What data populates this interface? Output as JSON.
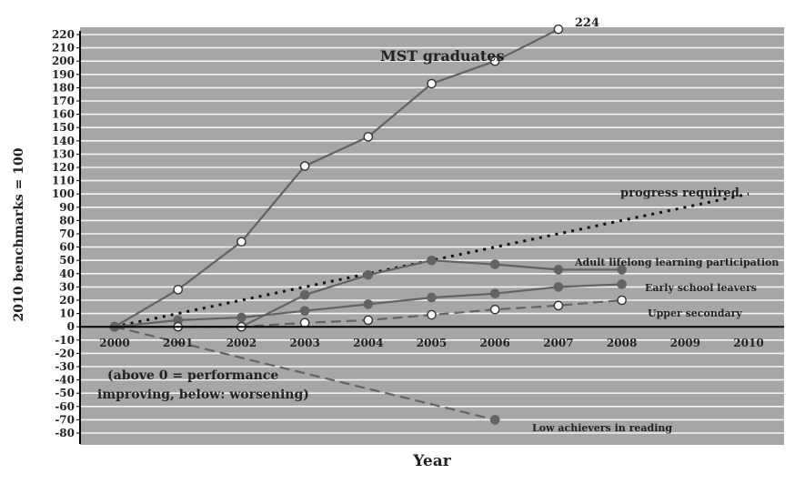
{
  "chart_data": {
    "type": "line",
    "ylabel": "2010 benchmarks = 100",
    "xlabel": "Year",
    "x": [
      2000,
      2001,
      2002,
      2003,
      2004,
      2005,
      2006,
      2007,
      2008,
      2009,
      2010
    ],
    "xlim": [
      2000,
      2010
    ],
    "ylim": [
      -80,
      220
    ],
    "ytick_step": 10,
    "grid": true,
    "colors": {
      "background": "#a6a6a6",
      "grid": "#f2f2f2",
      "series": "#636363",
      "progress": "#111111",
      "axis": "#000000"
    },
    "note_lines": [
      "(above 0 = performance",
      "improving, below: worsening)"
    ],
    "series": [
      {
        "name": "MST graduates",
        "style": "solid",
        "marker": "open",
        "x": [
          2000,
          2001,
          2002,
          2003,
          2004,
          2005,
          2006,
          2007
        ],
        "values": [
          0,
          28,
          64,
          121,
          143,
          183,
          200,
          224
        ],
        "end_value_label": "224"
      },
      {
        "name": "progress required",
        "style": "dotted",
        "marker": "none",
        "x": [
          2000,
          2010
        ],
        "values": [
          0,
          100
        ]
      },
      {
        "name": "Adult lifelong learning participation",
        "style": "solid",
        "marker": "filled",
        "x": [
          2000,
          2001,
          2002,
          2003,
          2004,
          2005,
          2006,
          2007,
          2008
        ],
        "values": [
          0,
          0,
          0,
          24,
          39,
          50,
          47,
          43,
          43
        ]
      },
      {
        "name": "Early school leavers",
        "style": "solid",
        "marker": "filled",
        "x": [
          2000,
          2001,
          2002,
          2003,
          2004,
          2005,
          2006,
          2007,
          2008
        ],
        "values": [
          0,
          5,
          7,
          12,
          17,
          22,
          25,
          30,
          32
        ]
      },
      {
        "name": "Upper secondary",
        "style": "dashed",
        "marker": "open",
        "x": [
          2000,
          2001,
          2002,
          2003,
          2004,
          2005,
          2006,
          2007,
          2008
        ],
        "values": [
          0,
          0,
          0,
          3,
          5,
          9,
          13,
          16,
          20
        ]
      },
      {
        "name": "Low achievers in reading",
        "style": "dashed",
        "marker": "filled",
        "x": [
          2000,
          2006
        ],
        "values": [
          0,
          -70
        ]
      }
    ]
  }
}
